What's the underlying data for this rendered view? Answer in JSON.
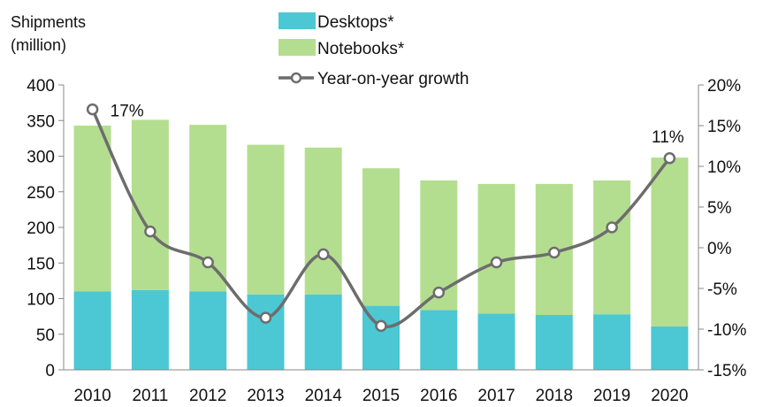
{
  "chart_data": {
    "type": "bar",
    "stacked": true,
    "ylabel_lines": [
      "Shipments",
      "(million)"
    ],
    "categories": [
      "2010",
      "2011",
      "2012",
      "2013",
      "2014",
      "2015",
      "2016",
      "2017",
      "2018",
      "2019",
      "2020"
    ],
    "series": [
      {
        "name": "Desktops*",
        "type": "bar",
        "color": "#4bc8d3",
        "values": [
          110,
          112,
          110,
          106,
          106,
          90,
          84,
          79,
          77,
          78,
          61
        ]
      },
      {
        "name": "Notebooks*",
        "type": "bar",
        "color": "#b4de8f",
        "values": [
          233,
          239,
          234,
          210,
          206,
          193,
          182,
          182,
          184,
          188,
          237
        ]
      },
      {
        "name": "Year-on-year growth",
        "type": "line",
        "axis": "right",
        "color": "#6d6d6d",
        "values": [
          17,
          2,
          -1.8,
          -8.6,
          -0.8,
          -9.6,
          -5.5,
          -1.8,
          -0.6,
          2.5,
          11
        ]
      }
    ],
    "ylim": [
      0,
      400
    ],
    "yticks": [
      "0",
      "50",
      "100",
      "150",
      "200",
      "250",
      "300",
      "350",
      "400"
    ],
    "y2lim": [
      -15,
      20
    ],
    "y2ticks": [
      "-15%",
      "-10%",
      "-5%",
      "0%",
      "5%",
      "10%",
      "15%",
      "20%"
    ],
    "annotations": [
      {
        "category": "2010",
        "text": "17%"
      },
      {
        "category": "2020",
        "text": "11%"
      }
    ],
    "legend_position": "top",
    "grid": false
  }
}
